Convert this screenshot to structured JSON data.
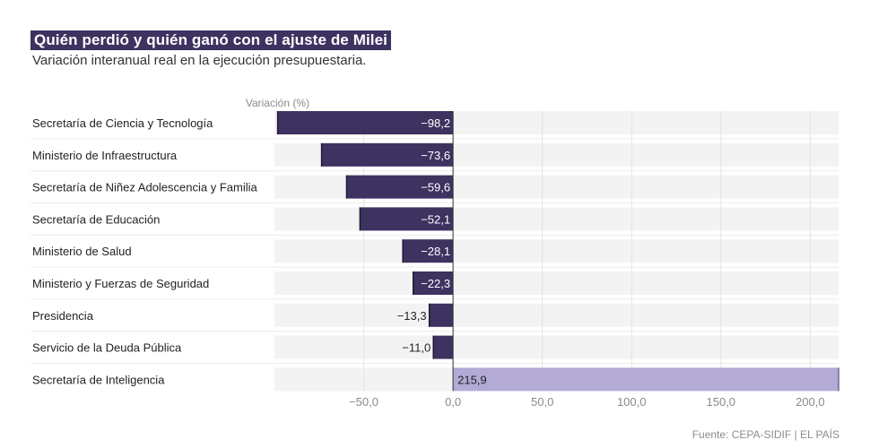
{
  "title": "Quién perdió y quién ganó con el ajuste de Milei",
  "subtitle": "Variación interanual real en la ejecución presupuestaria.",
  "source": "Fuente: CEPA-SIDIF | EL PAÍS",
  "colors": {
    "negative": "#3d3260",
    "positive": "#b3aad6",
    "track": "#f3f3f3",
    "grid": "#e4e4e4"
  },
  "chart_data": {
    "type": "bar",
    "orientation": "horizontal",
    "ylabel": "Variación (%)",
    "xlim": [
      -100,
      215.9
    ],
    "xticks": [
      -50,
      0,
      50,
      100,
      150,
      200
    ],
    "xtick_labels": [
      "−50,0",
      "0,0",
      "50,0",
      "100,0",
      "150,0",
      "200,0"
    ],
    "categories": [
      "Secretaría de Ciencia y Tecnología",
      "Ministerio de Infraestructura",
      "Secretaría de Niñez Adolescencia y Familia",
      "Secretaría de Educación",
      "Ministerio de Salud",
      "Ministerio y Fuerzas de Seguridad",
      "Presidencia",
      "Servicio de la Deuda Pública",
      "Secretaría de Inteligencia"
    ],
    "values": [
      -98.2,
      -73.6,
      -59.6,
      -52.1,
      -28.1,
      -22.3,
      -13.3,
      -11.0,
      215.9
    ],
    "value_labels": [
      "−98,2",
      "−73,6",
      "−59,6",
      "−52,1",
      "−28,1",
      "−22,3",
      "−13,3",
      "−11,0",
      "215,9"
    ],
    "grid": true
  }
}
